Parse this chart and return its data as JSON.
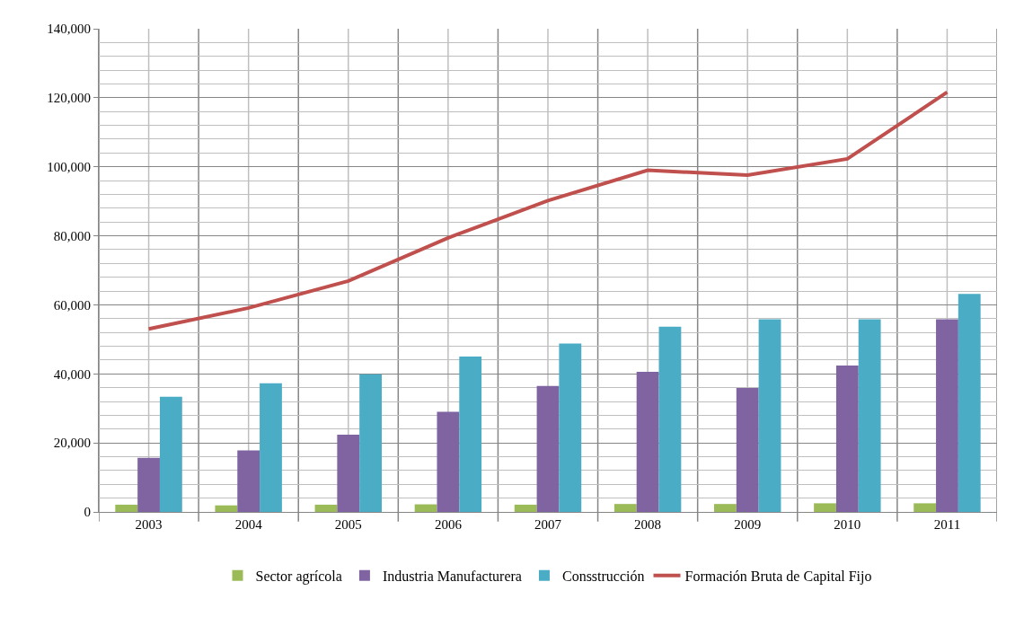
{
  "chart_data": {
    "type": "bar",
    "categories": [
      "2003",
      "2004",
      "2005",
      "2006",
      "2007",
      "2008",
      "2009",
      "2010",
      "2011"
    ],
    "series": [
      {
        "name": "Sector agrícola",
        "color": "#9bbb59",
        "values": [
          2100,
          1900,
          2100,
          2200,
          2100,
          2300,
          2300,
          2500,
          2500
        ]
      },
      {
        "name": "Industria Manufacturera",
        "color": "#8064a2",
        "values": [
          15700,
          17800,
          22400,
          29000,
          36500,
          40600,
          35900,
          42400,
          55800
        ]
      },
      {
        "name": "Consstrucción",
        "color": "#4bacc6",
        "values": [
          33400,
          37300,
          39900,
          45000,
          48800,
          53700,
          55800,
          55800,
          63200
        ]
      },
      {
        "name": "Formación Bruta de Capital Fijo",
        "type": "line",
        "color": "#c0504d",
        "values": [
          53000,
          59100,
          66900,
          79400,
          90200,
          99000,
          97600,
          102300,
          121600
        ]
      }
    ],
    "ylim": [
      0,
      140000
    ],
    "yticks": [
      {
        "value": 0,
        "label": "0"
      },
      {
        "value": 20000,
        "label": "20,000"
      },
      {
        "value": 40000,
        "label": "40,000"
      },
      {
        "value": 60000,
        "label": "60,000"
      },
      {
        "value": 80000,
        "label": "80,000"
      },
      {
        "value": 100000,
        "label": "100,000"
      },
      {
        "value": 120000,
        "label": "120,000"
      },
      {
        "value": 140000,
        "label": "140,000"
      }
    ],
    "grid": true,
    "legend": "bottom",
    "marker": "none"
  }
}
